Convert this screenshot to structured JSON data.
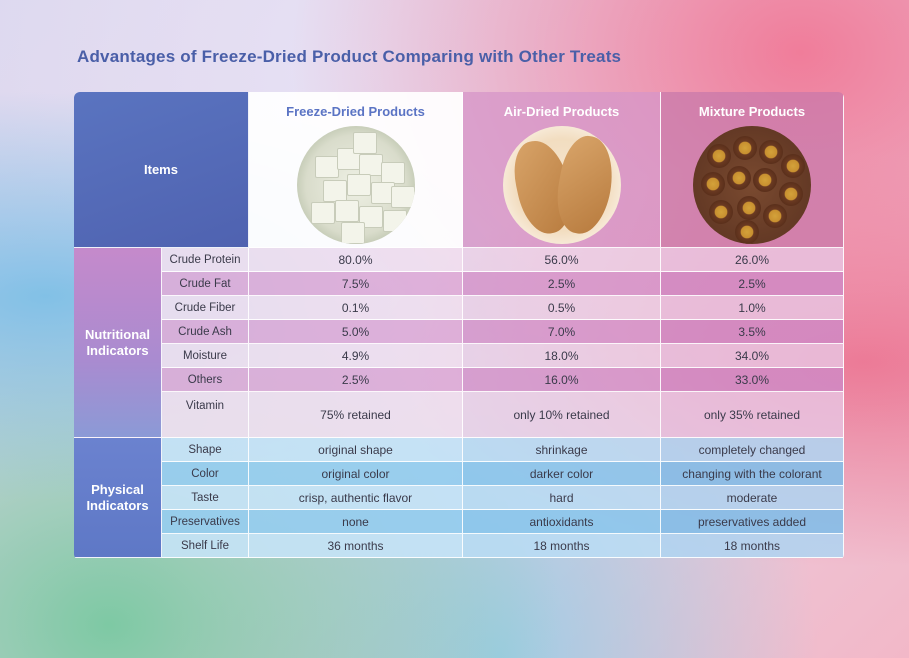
{
  "title": "Advantages of Freeze-Dried Product Comparing with Other Treats",
  "header": {
    "items_label": "Items",
    "columns": [
      "Freeze-Dried Products",
      "Air-Dried Products",
      "Mixture Products"
    ]
  },
  "nutritional": {
    "group_label_line1": "Nutritional",
    "group_label_line2": "Indicators",
    "rows": [
      {
        "label": "Crude Protein",
        "values": [
          "80.0%",
          "56.0%",
          "26.0%"
        ]
      },
      {
        "label": "Crude Fat",
        "values": [
          "7.5%",
          "2.5%",
          "2.5%"
        ]
      },
      {
        "label": "Crude Fiber",
        "values": [
          "0.1%",
          "0.5%",
          "1.0%"
        ]
      },
      {
        "label": "Crude Ash",
        "values": [
          "5.0%",
          "7.0%",
          "3.5%"
        ]
      },
      {
        "label": "Moisture",
        "values": [
          "4.9%",
          "18.0%",
          "34.0%"
        ]
      },
      {
        "label": "Others",
        "values": [
          "2.5%",
          "16.0%",
          "33.0%"
        ]
      },
      {
        "label": "Vitamin",
        "values": [
          "75% retained",
          "only 10% retained",
          "only 35% retained"
        ]
      }
    ]
  },
  "physical": {
    "group_label_line1": "Physical",
    "group_label_line2": "Indicators",
    "rows": [
      {
        "label": "Shape",
        "values": [
          "original shape",
          "shrinkage",
          "completely changed"
        ]
      },
      {
        "label": "Color",
        "values": [
          "original color",
          "darker color",
          "changing with the colorant"
        ]
      },
      {
        "label": "Taste",
        "values": [
          "crisp, authentic flavor",
          "hard",
          "moderate"
        ]
      },
      {
        "label": "Preservatives",
        "values": [
          "none",
          "antioxidants",
          "preservatives added"
        ]
      },
      {
        "label": "Shelf Life",
        "values": [
          "36 months",
          "18 months",
          "18 months"
        ]
      }
    ]
  }
}
